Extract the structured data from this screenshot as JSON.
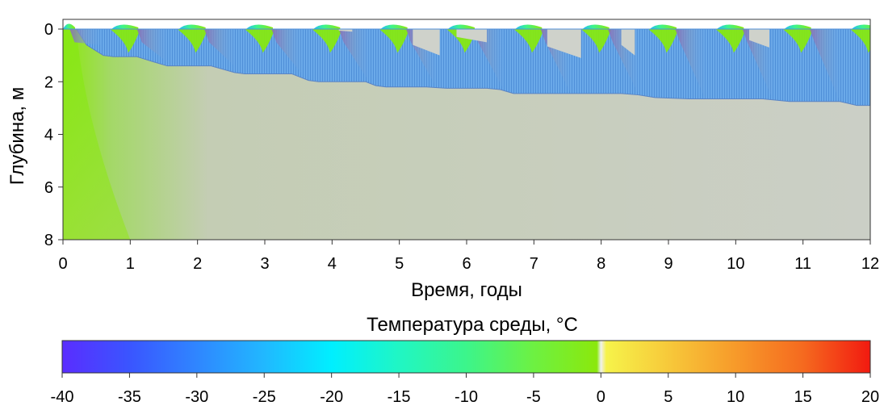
{
  "chart_data": [
    {
      "type": "heatmap",
      "title": "",
      "xlabel": "Время, годы",
      "ylabel": "Глубина, м",
      "xlim": [
        0,
        12
      ],
      "ylim": [
        8,
        0
      ],
      "y_axis_inverted": true,
      "x_ticks": [
        0,
        1,
        2,
        3,
        4,
        5,
        6,
        7,
        8,
        9,
        10,
        11,
        12
      ],
      "x_tick_labels": [
        "0",
        "1",
        "2",
        "3",
        "4",
        "5",
        "6",
        "7",
        "8",
        "9",
        "10",
        "11",
        "12"
      ],
      "y_ticks": [
        0,
        2,
        4,
        6,
        8
      ],
      "y_tick_labels": [
        "0",
        "2",
        "4",
        "6",
        "8"
      ],
      "grid": false,
      "thaw_boundary": {
        "x": [
          0.2,
          0.35,
          0.6,
          0.75,
          1.1,
          1.35,
          1.55,
          2.0,
          2.2,
          2.55,
          2.7,
          3.2,
          3.4,
          3.65,
          3.8,
          4.3,
          4.5,
          4.65,
          4.8,
          5.2,
          5.4,
          5.7,
          5.9,
          6.3,
          6.5,
          6.7,
          6.9,
          7.5,
          7.7,
          8.3,
          8.55,
          8.8,
          9.3,
          9.5,
          9.8,
          10.4,
          10.6,
          10.8,
          11.3,
          11.55,
          11.8,
          12.0
        ],
        "depth": [
          0.0,
          0.6,
          1.0,
          1.05,
          1.05,
          1.25,
          1.4,
          1.4,
          1.4,
          1.65,
          1.7,
          1.7,
          1.7,
          1.95,
          2.0,
          2.0,
          2.0,
          2.15,
          2.2,
          2.2,
          2.2,
          2.25,
          2.25,
          2.25,
          2.3,
          2.45,
          2.45,
          2.45,
          2.45,
          2.45,
          2.5,
          2.6,
          2.65,
          2.65,
          2.65,
          2.65,
          2.7,
          2.75,
          2.75,
          2.75,
          2.9,
          2.9
        ]
      },
      "summer_thaw_pockets": [
        {
          "x0": 4.1,
          "x1": 4.3,
          "depth_max": 0.1
        },
        {
          "x0": 5.85,
          "x1": 6.3,
          "depth_max": 0.5
        },
        {
          "x0": 5.2,
          "x1": 5.6,
          "depth_max": 1.0
        },
        {
          "x0": 7.2,
          "x1": 7.7,
          "depth_max": 1.1
        },
        {
          "x0": 8.3,
          "x1": 8.5,
          "depth_max": 1.0
        },
        {
          "x0": 10.2,
          "x1": 10.5,
          "depth_max": 0.7
        }
      ]
    },
    {
      "type": "colorbar",
      "title": "Температура среды, °C",
      "range": [
        -40,
        20
      ],
      "ticks": [
        -40,
        -35,
        -30,
        -25,
        -20,
        -15,
        -10,
        -5,
        0,
        5,
        10,
        15,
        20
      ],
      "tick_labels": [
        "-40",
        "-35",
        "-30",
        "-25",
        "-20",
        "-15",
        "-10",
        "-5",
        "0",
        "5",
        "10",
        "15",
        "20"
      ],
      "colors": [
        {
          "value": -40,
          "color": "#5a2dff"
        },
        {
          "value": -35,
          "color": "#3a55ff"
        },
        {
          "value": -30,
          "color": "#2f86ff"
        },
        {
          "value": -25,
          "color": "#21b8ff"
        },
        {
          "value": -20,
          "color": "#00efff"
        },
        {
          "value": -15,
          "color": "#20f6c4"
        },
        {
          "value": -10,
          "color": "#3cf58b"
        },
        {
          "value": -5,
          "color": "#6df142"
        },
        {
          "value": -0.3,
          "color": "#8be80c"
        },
        {
          "value": 0,
          "color": "#f0f0f0"
        },
        {
          "value": 0.4,
          "color": "#f6f34a"
        },
        {
          "value": 5,
          "color": "#f7c93a"
        },
        {
          "value": 10,
          "color": "#f79a2a"
        },
        {
          "value": 15,
          "color": "#f56a1f"
        },
        {
          "value": 20,
          "color": "#f21a10"
        }
      ]
    }
  ]
}
